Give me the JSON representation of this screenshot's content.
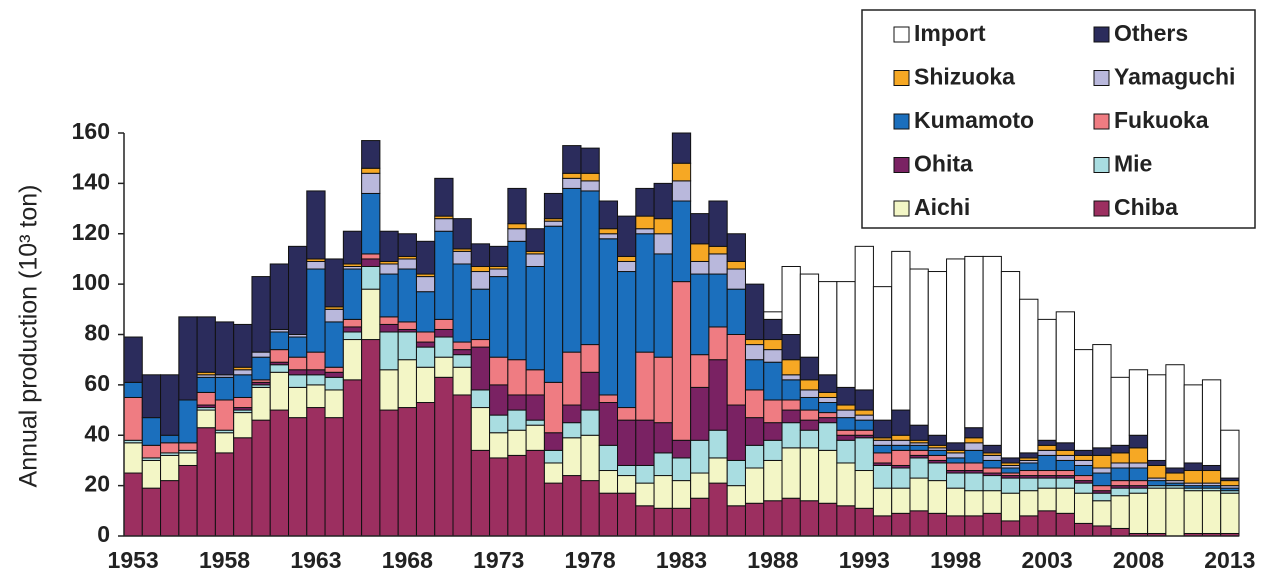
{
  "chart_data": {
    "type": "stacked_bar",
    "y_label": "Annual production (10³ ton)",
    "categories": [
      "1953",
      null,
      null,
      null,
      null,
      "1958",
      null,
      null,
      null,
      null,
      "1963",
      null,
      null,
      null,
      null,
      "1968",
      null,
      null,
      null,
      null,
      "1973",
      null,
      null,
      null,
      null,
      "1978",
      null,
      null,
      null,
      null,
      "1983",
      null,
      null,
      null,
      null,
      "1988",
      null,
      null,
      null,
      null,
      "1993",
      null,
      null,
      null,
      null,
      "1998",
      null,
      null,
      null,
      null,
      "2003",
      null,
      null,
      null,
      null,
      "2008",
      null,
      null,
      null,
      null,
      "2013"
    ],
    "ylim": [
      0,
      160
    ],
    "yticks": [
      0,
      20,
      40,
      60,
      80,
      100,
      120,
      140,
      160
    ],
    "legend": "upper right",
    "series": [
      {
        "name": "Chiba",
        "color": "#9c2f60",
        "values": [
          25,
          19,
          22,
          28,
          43,
          33,
          39,
          46,
          50,
          47,
          51,
          47,
          62,
          78,
          50,
          51,
          53,
          63,
          56,
          34,
          31,
          32,
          34,
          21,
          24,
          22,
          17,
          17,
          12,
          11,
          11,
          15,
          21,
          12,
          13,
          14,
          15,
          14,
          13,
          12,
          11,
          8,
          9,
          10,
          9,
          8,
          8,
          9,
          6,
          8,
          10,
          9,
          5,
          4,
          3,
          1,
          1,
          0,
          1,
          1,
          1
        ]
      },
      {
        "name": "Aichi",
        "color": "#f3f6c6",
        "values": [
          12,
          11,
          10,
          5,
          7,
          8,
          10,
          13,
          15,
          12,
          9,
          11,
          16,
          20,
          16,
          19,
          14,
          8,
          11,
          17,
          10,
          10,
          10,
          8,
          15,
          18,
          9,
          7,
          9,
          13,
          11,
          10,
          10,
          8,
          14,
          16,
          20,
          21,
          21,
          17,
          15,
          11,
          10,
          13,
          13,
          11,
          10,
          9,
          11,
          10,
          9,
          10,
          12,
          10,
          13,
          16,
          18,
          19,
          17,
          17,
          16
        ]
      },
      {
        "name": "Mie",
        "color": "#a9dde1",
        "values": [
          1,
          1,
          1,
          1,
          1,
          1,
          1,
          1,
          3,
          5,
          4,
          5,
          3,
          9,
          15,
          11,
          8,
          8,
          5,
          7,
          7,
          8,
          2,
          5,
          6,
          10,
          10,
          4,
          7,
          9,
          9,
          13,
          11,
          10,
          9,
          8,
          10,
          7,
          11,
          9,
          13,
          9,
          8,
          8,
          7,
          6,
          7,
          6,
          6,
          5,
          4,
          4,
          4,
          3,
          3,
          2,
          1,
          1,
          1,
          1,
          1
        ]
      },
      {
        "name": "Ohita",
        "color": "#7a2263",
        "values": [
          0,
          0,
          0,
          0,
          1,
          0,
          1,
          1,
          1,
          2,
          2,
          2,
          2,
          3,
          3,
          1,
          2,
          3,
          2,
          17,
          12,
          6,
          10,
          7,
          7,
          15,
          17,
          18,
          18,
          12,
          7,
          21,
          28,
          22,
          11,
          7,
          5,
          4,
          2,
          2,
          1,
          1,
          1,
          1,
          1,
          1,
          1,
          1,
          1,
          1,
          1,
          1,
          1,
          1,
          1,
          1,
          0,
          0,
          0,
          0,
          0
        ]
      },
      {
        "name": "Fukuoka",
        "color": "#ef7c82",
        "values": [
          17,
          5,
          4,
          3,
          5,
          12,
          4,
          1,
          5,
          5,
          7,
          2,
          3,
          2,
          3,
          3,
          4,
          4,
          3,
          3,
          11,
          14,
          10,
          20,
          21,
          11,
          3,
          5,
          27,
          26,
          63,
          13,
          13,
          28,
          11,
          9,
          4,
          4,
          2,
          2,
          2,
          4,
          6,
          2,
          2,
          3,
          3,
          2,
          1,
          2,
          2,
          2,
          2,
          2,
          2,
          2,
          0,
          0,
          0,
          0,
          0
        ]
      },
      {
        "name": "Kumamoto",
        "color": "#1b6fbd",
        "values": [
          6,
          11,
          3,
          17,
          6,
          9,
          9,
          9,
          7,
          8,
          33,
          18,
          20,
          24,
          17,
          21,
          16,
          35,
          31,
          20,
          32,
          47,
          41,
          62,
          65,
          61,
          62,
          54,
          47,
          41,
          32,
          32,
          21,
          18,
          12,
          15,
          8,
          5,
          4,
          5,
          4,
          3,
          2,
          2,
          2,
          2,
          5,
          3,
          2,
          3,
          6,
          4,
          4,
          5,
          5,
          5,
          2,
          1,
          1,
          1,
          1
        ]
      },
      {
        "name": "Yamaguchi",
        "color": "#b9b8dc",
        "values": [
          0,
          0,
          0,
          0,
          1,
          1,
          2,
          2,
          1,
          1,
          3,
          5,
          1,
          8,
          4,
          4,
          6,
          5,
          5,
          7,
          3,
          5,
          5,
          2,
          4,
          4,
          2,
          4,
          2,
          8,
          8,
          5,
          8,
          8,
          6,
          5,
          2,
          3,
          2,
          3,
          2,
          2,
          2,
          1,
          1,
          2,
          3,
          2,
          1,
          1,
          2,
          2,
          2,
          2,
          2,
          2,
          1,
          1,
          1,
          1,
          1
        ]
      },
      {
        "name": "Shizuoka",
        "color": "#f6a824",
        "values": [
          0,
          0,
          0,
          0,
          1,
          0,
          1,
          0,
          0,
          0,
          1,
          1,
          1,
          2,
          1,
          1,
          1,
          1,
          1,
          2,
          1,
          2,
          1,
          1,
          2,
          3,
          2,
          2,
          5,
          6,
          7,
          7,
          3,
          3,
          2,
          4,
          6,
          4,
          2,
          2,
          2,
          1,
          2,
          1,
          1,
          1,
          2,
          1,
          1,
          1,
          2,
          2,
          2,
          5,
          4,
          6,
          5,
          3,
          5,
          5,
          2
        ]
      },
      {
        "name": "Others",
        "color": "#2b2c5c",
        "values": [
          18,
          17,
          24,
          33,
          22,
          21,
          17,
          30,
          26,
          35,
          27,
          19,
          13,
          11,
          12,
          9,
          13,
          15,
          12,
          9,
          8,
          14,
          9,
          10,
          11,
          10,
          11,
          16,
          11,
          14,
          12,
          12,
          18,
          11,
          22,
          8,
          10,
          9,
          7,
          7,
          8,
          7,
          10,
          6,
          4,
          3,
          4,
          3,
          2,
          2,
          2,
          3,
          2,
          3,
          3,
          5,
          2,
          2,
          3,
          2,
          1
        ]
      },
      {
        "name": "Import",
        "color": "#ffffff",
        "values": [
          0,
          0,
          0,
          0,
          0,
          0,
          0,
          0,
          0,
          0,
          0,
          0,
          0,
          0,
          0,
          0,
          0,
          0,
          0,
          0,
          0,
          0,
          0,
          0,
          0,
          0,
          0,
          0,
          0,
          0,
          0,
          0,
          0,
          0,
          0,
          3,
          27,
          33,
          37,
          42,
          57,
          53,
          63,
          62,
          65,
          73,
          68,
          75,
          74,
          61,
          48,
          52,
          40,
          41,
          27,
          26,
          34,
          41,
          31,
          34,
          19
        ]
      }
    ]
  }
}
